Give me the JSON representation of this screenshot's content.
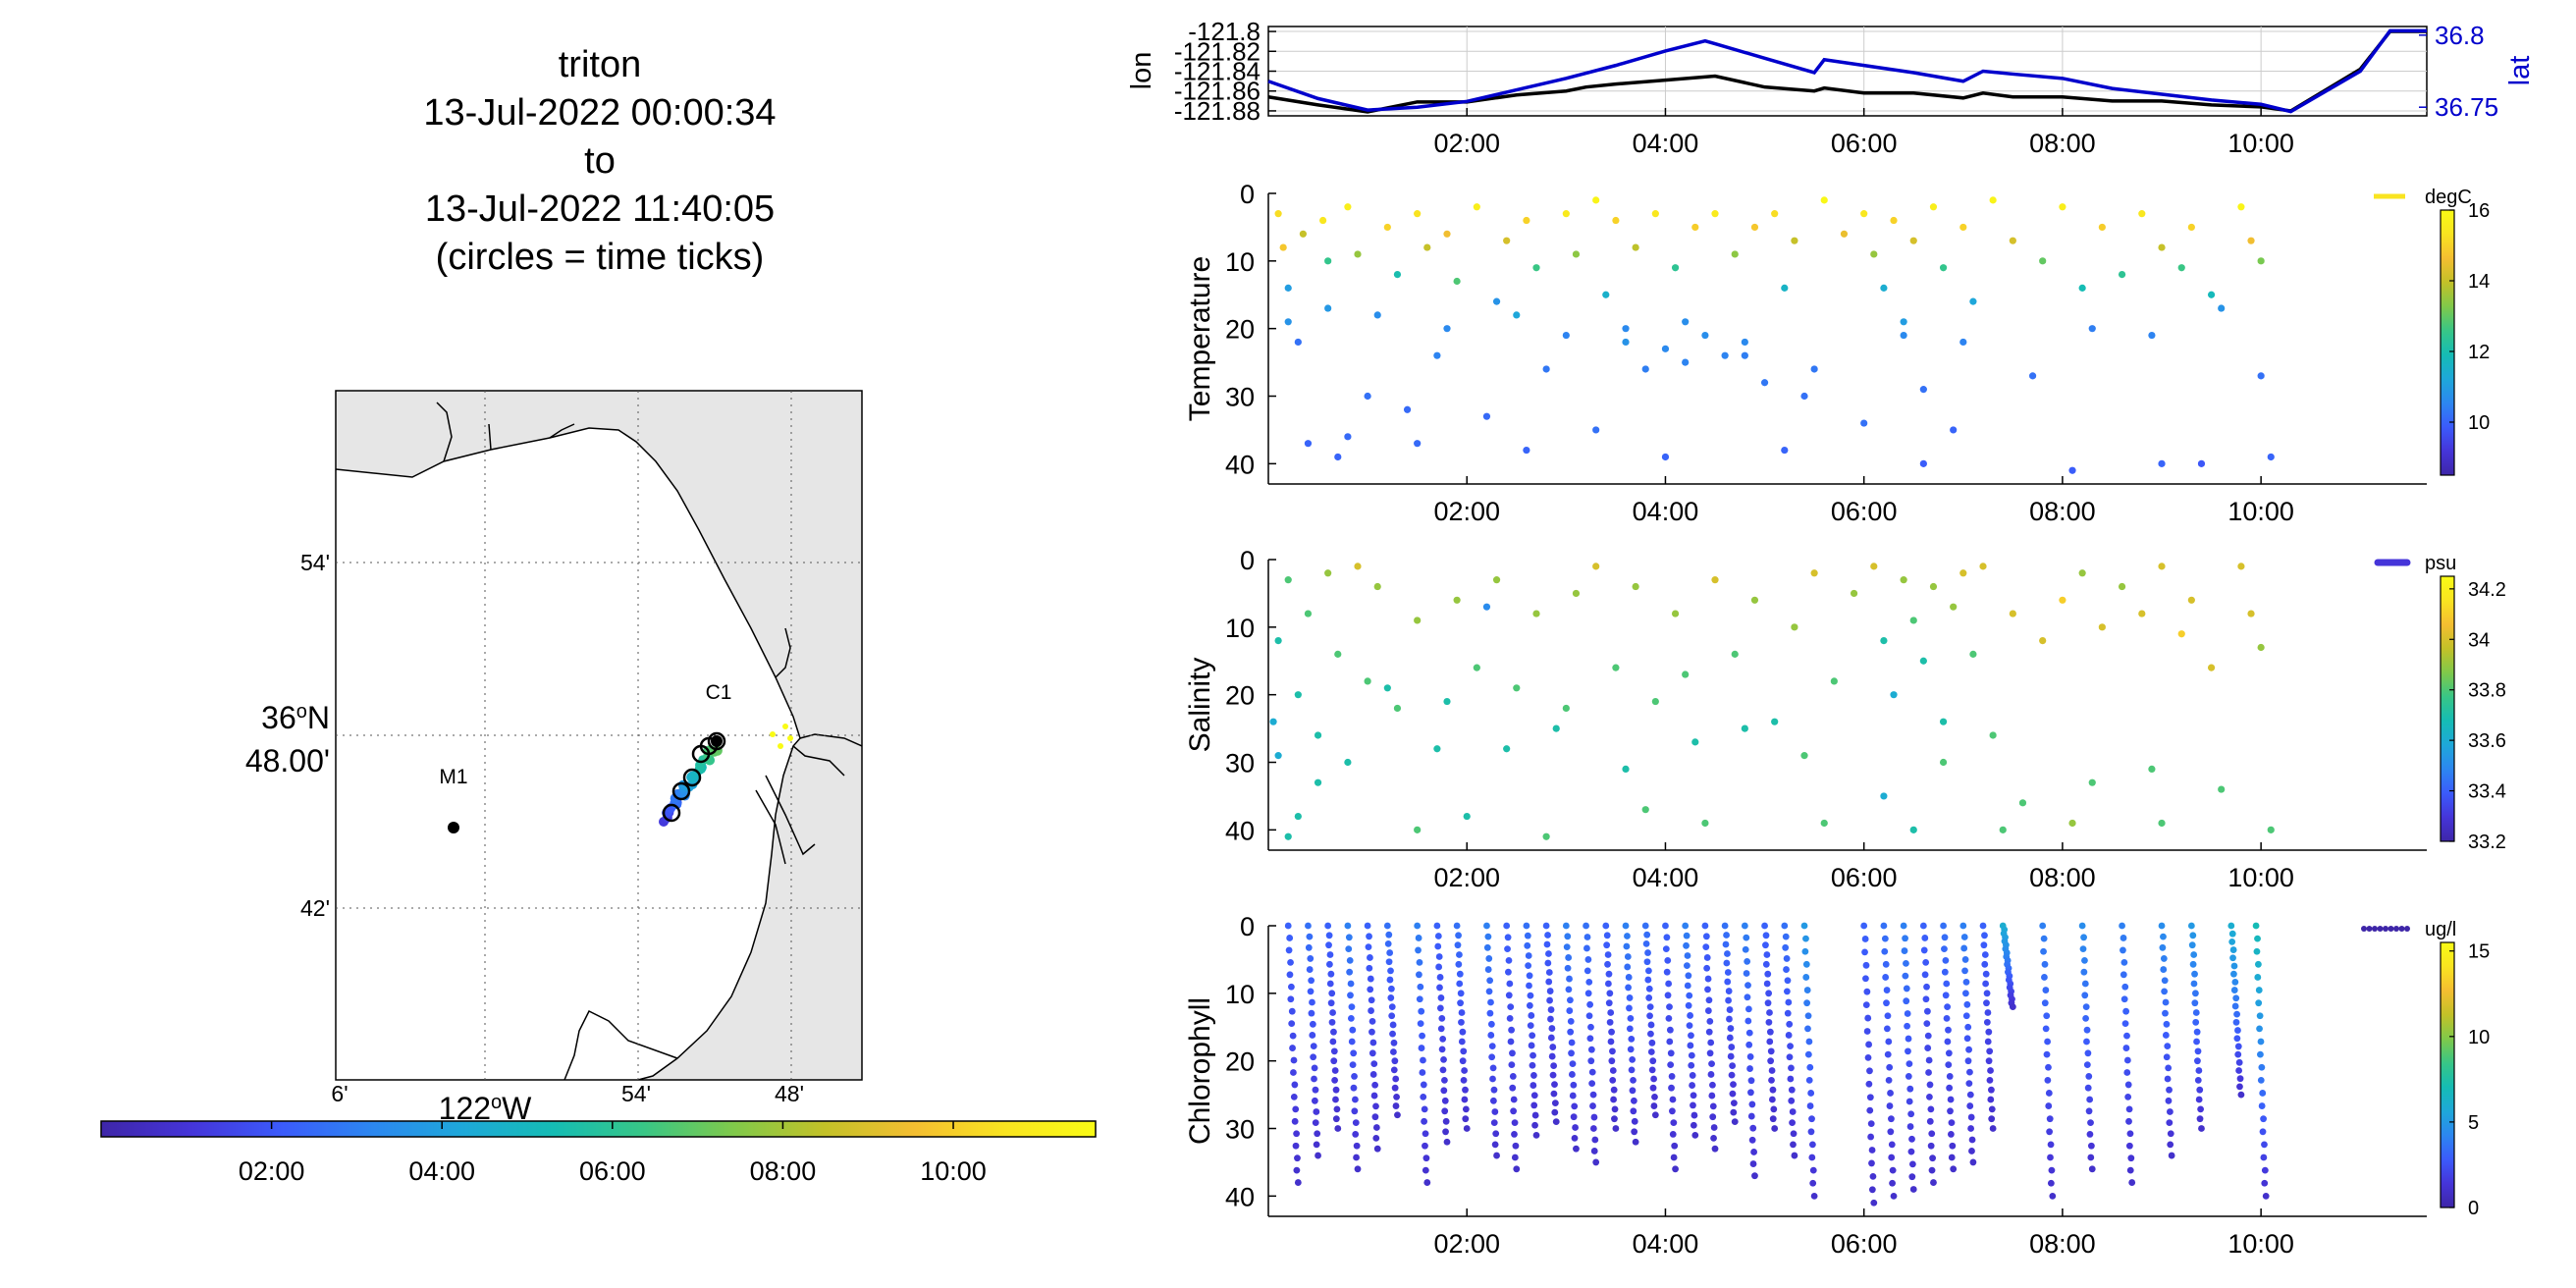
{
  "title": {
    "lines": [
      "triton",
      "13-Jul-2022 00:00:34",
      "to",
      "13-Jul-2022 11:40:05",
      "(circles = time ticks)"
    ]
  },
  "map": {
    "lat_labels": [
      "54'",
      "36°N 48.00'",
      "42'"
    ],
    "lon_labels": [
      "6'",
      "122°W",
      "54'",
      "48'"
    ],
    "stations": [
      {
        "name": "M1"
      },
      {
        "name": "C1"
      }
    ],
    "time_colorbar": {
      "ticks": [
        "02:00",
        "04:00",
        "06:00",
        "08:00",
        "10:00"
      ],
      "range_hours": [
        0,
        11.67
      ]
    },
    "colors": {
      "land": "#e6e6e6",
      "sea": "#ffffff",
      "coast": "#000000"
    }
  },
  "time_axis": {
    "ticks": [
      "02:00",
      "04:00",
      "06:00",
      "08:00",
      "10:00"
    ],
    "tick_hours": [
      2,
      4,
      6,
      8,
      10
    ],
    "range_hours": [
      0,
      11.67
    ]
  },
  "chart_data": [
    {
      "type": "line",
      "title": "",
      "xlabel": "",
      "ylabel": "lon",
      "y2label": "lat",
      "ylim": [
        -121.885,
        -121.795
      ],
      "y2lim": [
        36.744,
        36.806
      ],
      "yticks": [
        "-121.8",
        "-121.82",
        "-121.84",
        "-121.86",
        "-121.88"
      ],
      "y2ticks": [
        "36.8",
        "36.75"
      ],
      "grid": true,
      "series": [
        {
          "name": "lon",
          "axis": "left",
          "color": "#000000",
          "x": [
            0,
            0.5,
            1.0,
            1.5,
            2.0,
            2.5,
            3.0,
            3.2,
            3.5,
            4.0,
            4.5,
            5.0,
            5.5,
            5.6,
            6.0,
            6.5,
            7.0,
            7.2,
            7.5,
            8.0,
            8.5,
            9.0,
            9.5,
            10.0,
            10.3,
            11.0,
            11.3,
            11.67
          ],
          "y": [
            -121.866,
            -121.874,
            -121.881,
            -121.871,
            -121.871,
            -121.864,
            -121.86,
            -121.856,
            -121.853,
            -121.849,
            -121.845,
            -121.856,
            -121.86,
            -121.857,
            -121.862,
            -121.862,
            -121.867,
            -121.862,
            -121.866,
            -121.866,
            -121.87,
            -121.87,
            -121.874,
            -121.876,
            -121.88,
            -121.838,
            -121.8,
            -121.8
          ]
        },
        {
          "name": "lat",
          "axis": "right",
          "color": "#0000cc",
          "x": [
            0,
            0.5,
            1.0,
            1.5,
            2.0,
            2.5,
            3.0,
            3.5,
            4.0,
            4.4,
            4.5,
            5.0,
            5.5,
            5.6,
            6.0,
            6.5,
            7.0,
            7.2,
            7.5,
            8.0,
            8.5,
            9.0,
            9.5,
            10.0,
            10.3,
            11.0,
            11.3,
            11.67
          ],
          "y": [
            36.768,
            36.756,
            36.748,
            36.75,
            36.754,
            36.762,
            36.77,
            36.779,
            36.789,
            36.796,
            36.794,
            36.784,
            36.774,
            36.783,
            36.779,
            36.774,
            36.768,
            36.775,
            36.773,
            36.77,
            36.763,
            36.759,
            36.755,
            36.752,
            36.747,
            36.775,
            36.803,
            36.803
          ]
        }
      ]
    },
    {
      "type": "scatter",
      "ylabel": "Temperature",
      "ylim": [
        0,
        43
      ],
      "yticks": [
        "0",
        "10",
        "20",
        "30",
        "40"
      ],
      "colorbar": {
        "label": "degC",
        "range": [
          8.5,
          16
        ],
        "ticks": [
          "16",
          "14",
          "12",
          "10"
        ],
        "tick_values": [
          16,
          14,
          12,
          10
        ]
      },
      "x": [
        0.1,
        0.15,
        0.2,
        0.3,
        0.35,
        0.4,
        0.55,
        0.6,
        0.7,
        0.8,
        0.9,
        1.0,
        1.2,
        1.3,
        1.4,
        1.5,
        1.6,
        1.7,
        1.8,
        1.9,
        2.1,
        2.2,
        2.4,
        2.5,
        2.6,
        2.7,
        2.8,
        3.0,
        3.1,
        3.3,
        3.4,
        3.5,
        3.6,
        3.7,
        3.8,
        3.9,
        4.0,
        4.1,
        4.2,
        4.3,
        4.4,
        4.5,
        4.6,
        4.7,
        4.8,
        4.9,
        5.0,
        5.1,
        5.2,
        5.3,
        5.4,
        5.6,
        5.8,
        6.0,
        6.1,
        6.2,
        6.3,
        6.4,
        6.5,
        6.6,
        6.7,
        6.8,
        6.9,
        7.0,
        7.1,
        7.3,
        7.5,
        7.8,
        8.0,
        8.2,
        8.4,
        8.6,
        8.8,
        9.0,
        9.2,
        9.3,
        9.5,
        9.8,
        9.9,
        10.0,
        10.1,
        0.2,
        0.6,
        1.1,
        1.8,
        2.3,
        3.0,
        3.6,
        4.2,
        4.8,
        5.5,
        6.4,
        7.0,
        7.7,
        8.3,
        8.9,
        9.6,
        10.0,
        1.5,
        2.6,
        4.0,
        5.2,
        6.6,
        8.1,
        9.4,
        0.8,
        3.3,
        6.0,
        9.0
      ],
      "y": [
        3,
        8,
        14,
        22,
        6,
        37,
        4,
        10,
        39,
        2,
        9,
        30,
        5,
        12,
        32,
        3,
        8,
        24,
        6,
        13,
        2,
        33,
        7,
        18,
        4,
        11,
        26,
        3,
        9,
        1,
        15,
        4,
        22,
        8,
        26,
        3,
        23,
        11,
        25,
        5,
        21,
        3,
        24,
        9,
        22,
        5,
        28,
        3,
        14,
        7,
        30,
        1,
        6,
        3,
        9,
        14,
        4,
        19,
        7,
        29,
        2,
        11,
        35,
        5,
        16,
        1,
        7,
        10,
        2,
        14,
        5,
        12,
        3,
        8,
        11,
        5,
        15,
        2,
        7,
        10,
        39,
        19,
        17,
        18,
        20,
        16,
        21,
        20,
        19,
        24,
        26,
        21,
        22,
        27,
        20,
        21,
        17,
        27,
        37,
        38,
        39,
        38,
        40,
        41,
        40,
        36,
        35,
        34,
        40
      ],
      "c": [
        15.2,
        14.8,
        11.0,
        10.2,
        14.0,
        10.0,
        15.4,
        12.5,
        10.0,
        15.6,
        13.5,
        10.2,
        15.0,
        12.0,
        10.1,
        15.3,
        14.0,
        10.5,
        14.6,
        12.8,
        15.6,
        10.1,
        14.2,
        11.2,
        15.0,
        12.6,
        10.3,
        15.5,
        13.4,
        15.8,
        11.5,
        15.0,
        10.8,
        13.9,
        10.4,
        15.4,
        10.6,
        12.4,
        10.5,
        14.9,
        10.7,
        15.5,
        10.5,
        13.4,
        10.6,
        14.8,
        10.3,
        15.2,
        11.6,
        14.0,
        10.2,
        15.9,
        14.5,
        15.4,
        13.5,
        11.4,
        15.0,
        11.0,
        14.2,
        10.2,
        15.6,
        12.5,
        10.0,
        15.0,
        11.2,
        15.8,
        14.2,
        13.0,
        15.6,
        11.9,
        14.9,
        12.4,
        15.4,
        14.0,
        12.6,
        15.0,
        11.8,
        15.8,
        14.6,
        13.2,
        10.0,
        10.8,
        10.9,
        10.7,
        10.6,
        10.8,
        10.5,
        10.6,
        10.7,
        10.4,
        10.3,
        10.6,
        10.5,
        10.2,
        10.4,
        10.5,
        10.8,
        10.2,
        10.1,
        10.0,
        10.0,
        10.0,
        9.9,
        9.9,
        9.8,
        10.1,
        10.2,
        10.2,
        10.0
      ]
    },
    {
      "type": "scatter",
      "ylabel": "Salinity",
      "ylim": [
        0,
        43
      ],
      "yticks": [
        "0",
        "10",
        "20",
        "30",
        "40"
      ],
      "colorbar": {
        "label": "psu",
        "range": [
          33.2,
          34.25
        ],
        "ticks": [
          "34.2",
          "34",
          "33.8",
          "33.6",
          "33.4",
          "33.2"
        ],
        "tick_values": [
          34.2,
          34.0,
          33.8,
          33.6,
          33.4,
          33.2
        ]
      },
      "x": [
        0.05,
        0.1,
        0.2,
        0.3,
        0.4,
        0.5,
        0.6,
        0.7,
        0.8,
        0.9,
        1.0,
        1.1,
        1.3,
        1.5,
        1.7,
        1.9,
        2.1,
        2.2,
        2.3,
        2.5,
        2.7,
        2.9,
        3.1,
        3.3,
        3.5,
        3.7,
        3.9,
        4.1,
        4.3,
        4.5,
        4.7,
        4.9,
        5.1,
        5.3,
        5.5,
        5.7,
        5.9,
        6.1,
        6.2,
        6.3,
        6.4,
        6.5,
        6.6,
        6.7,
        6.8,
        6.9,
        7.0,
        7.1,
        7.2,
        7.3,
        7.5,
        7.8,
        8.0,
        8.2,
        8.4,
        8.6,
        8.8,
        9.0,
        9.2,
        9.3,
        9.5,
        9.8,
        9.9,
        10.0,
        0.1,
        0.5,
        1.2,
        1.8,
        2.4,
        3.0,
        3.6,
        4.2,
        4.8,
        5.4,
        6.2,
        6.8,
        7.6,
        8.3,
        8.9,
        9.6,
        10.1,
        0.3,
        1.5,
        2.8,
        4.4,
        6.5,
        8.1,
        0.2,
        2.0,
        3.8,
        5.6,
        7.4,
        9.0
      ],
      "y": [
        24,
        12,
        3,
        20,
        8,
        26,
        2,
        14,
        30,
        1,
        18,
        4,
        22,
        9,
        28,
        6,
        16,
        7,
        3,
        19,
        8,
        25,
        5,
        1,
        16,
        4,
        21,
        8,
        27,
        3,
        14,
        6,
        24,
        10,
        2,
        18,
        5,
        1,
        12,
        20,
        3,
        9,
        15,
        4,
        24,
        7,
        2,
        14,
        1,
        26,
        8,
        12,
        6,
        2,
        10,
        4,
        8,
        1,
        11,
        6,
        16,
        1,
        8,
        13,
        29,
        33,
        19,
        21,
        28,
        22,
        31,
        17,
        25,
        29,
        35,
        30,
        36,
        33,
        31,
        34,
        40,
        38,
        40,
        41,
        39,
        40,
        39,
        41,
        38,
        37,
        39,
        40,
        39
      ],
      "c": [
        33.6,
        33.7,
        33.8,
        33.7,
        33.8,
        33.7,
        33.9,
        33.8,
        33.7,
        34.0,
        33.8,
        33.9,
        33.8,
        33.9,
        33.7,
        33.9,
        33.8,
        33.5,
        33.9,
        33.8,
        33.9,
        33.7,
        33.9,
        34.0,
        33.8,
        33.9,
        33.8,
        33.9,
        33.7,
        34.0,
        33.8,
        33.9,
        33.7,
        33.9,
        34.0,
        33.8,
        33.9,
        34.0,
        33.7,
        33.6,
        33.9,
        33.8,
        33.7,
        33.9,
        33.7,
        33.9,
        34.0,
        33.8,
        34.0,
        33.8,
        34.0,
        34.0,
        34.1,
        33.9,
        34.0,
        33.9,
        34.0,
        34.0,
        34.1,
        34.0,
        34.0,
        34.0,
        34.0,
        33.9,
        33.6,
        33.7,
        33.7,
        33.7,
        33.7,
        33.8,
        33.7,
        33.8,
        33.7,
        33.8,
        33.6,
        33.8,
        33.8,
        33.8,
        33.8,
        33.8,
        33.8,
        33.7,
        33.8,
        33.8,
        33.8,
        33.7,
        33.9,
        33.7,
        33.7,
        33.8,
        33.8,
        33.8,
        33.8
      ]
    },
    {
      "type": "scatter",
      "ylabel": "Chlorophyll",
      "ylim": [
        0,
        43
      ],
      "yticks": [
        "0",
        "10",
        "20",
        "30",
        "40"
      ],
      "colorbar": {
        "label": "ug/l",
        "range": [
          0,
          15.5
        ],
        "ticks": [
          "15",
          "10",
          "5",
          "0"
        ],
        "tick_values": [
          15,
          10,
          5,
          0
        ]
      },
      "profile_tops_hours": [
        0.2,
        0.4,
        0.6,
        0.8,
        1.0,
        1.2,
        1.5,
        1.7,
        1.9,
        2.2,
        2.4,
        2.6,
        2.8,
        3.0,
        3.2,
        3.4,
        3.6,
        3.8,
        4.0,
        4.2,
        4.4,
        4.6,
        4.8,
        5.0,
        5.2,
        5.4,
        6.0,
        6.2,
        6.4,
        6.6,
        6.8,
        7.0,
        7.2,
        7.4,
        7.8,
        8.2,
        8.6,
        9.0,
        9.3,
        9.7,
        9.95
      ],
      "profile_max_depth": [
        38,
        34,
        30,
        36,
        33,
        28,
        38,
        32,
        30,
        34,
        36,
        31,
        29,
        33,
        35,
        30,
        32,
        28,
        36,
        31,
        33,
        29,
        37,
        30,
        34,
        40,
        41,
        40,
        39,
        38,
        36,
        35,
        30,
        12,
        40,
        36,
        38,
        34,
        30,
        25,
        40
      ],
      "chl_surface": [
        3,
        3.5,
        3,
        4,
        3,
        3.5,
        4,
        3,
        3.5,
        4,
        3,
        3.5,
        3,
        4,
        3.5,
        3,
        4,
        3.5,
        3,
        4,
        3,
        3.5,
        4,
        3,
        3.5,
        5,
        3,
        3.5,
        4,
        3,
        3.5,
        4,
        3,
        6,
        4,
        4.5,
        4,
        4.5,
        5,
        6,
        7
      ],
      "chl_deep": 1.0
    }
  ],
  "colormap": [
    "#3e26a8",
    "#4535d9",
    "#3b5bfb",
    "#2c87f0",
    "#1ea8d9",
    "#15bcb4",
    "#38c686",
    "#80c94a",
    "#c3c128",
    "#f4be31",
    "#f9e420",
    "#f9fb15"
  ]
}
